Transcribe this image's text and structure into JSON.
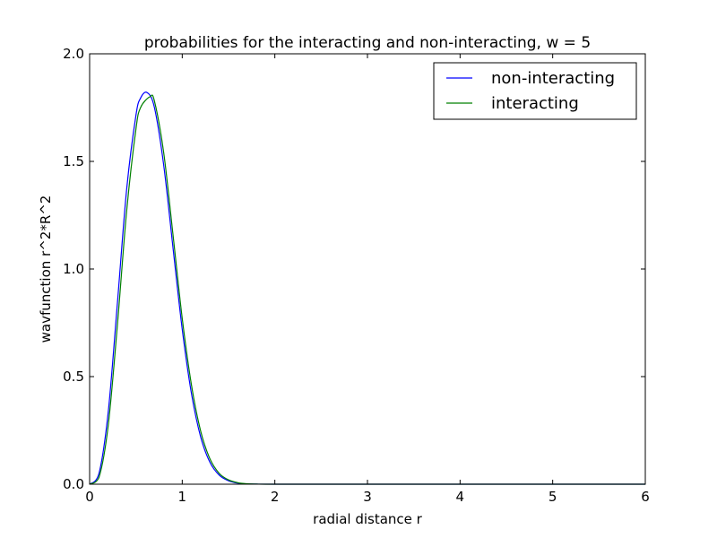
{
  "chart_data": {
    "type": "line",
    "title": "probabilities for the interacting and non-interacting, w = 5",
    "xlabel": "radial distance r",
    "ylabel": "wavfunction r^2*R^2",
    "xlim": [
      0,
      6
    ],
    "ylim": [
      0,
      2.0
    ],
    "xticks": [
      0,
      1,
      2,
      3,
      4,
      5,
      6
    ],
    "xtick_labels": [
      "0",
      "1",
      "2",
      "3",
      "4",
      "5",
      "6"
    ],
    "yticks": [
      0,
      0.5,
      1.0,
      1.5,
      2.0
    ],
    "ytick_labels": [
      "0.0",
      "0.5",
      "1.0",
      "1.5",
      "2.0"
    ],
    "grid": false,
    "legend_position": "top-right",
    "series": [
      {
        "name": "non-interacting",
        "color": "#0000ff",
        "x": [
          0,
          0.1,
          0.2,
          0.3,
          0.4,
          0.5,
          0.55,
          0.62,
          0.7,
          0.8,
          0.9,
          1.0,
          1.1,
          1.2,
          1.3,
          1.4,
          1.5,
          1.6,
          1.7,
          1.8,
          2.0,
          3.0,
          4.0,
          5.0,
          6.0
        ],
        "y": [
          0,
          0.048,
          0.332,
          0.842,
          1.371,
          1.714,
          1.794,
          1.82,
          1.75,
          1.482,
          1.1,
          0.72,
          0.42,
          0.218,
          0.101,
          0.042,
          0.016,
          0.005,
          0.0015,
          0.0004,
          0.0,
          0.0,
          0.0,
          0.0,
          0.0
        ]
      },
      {
        "name": "interacting",
        "color": "#008000",
        "x": [
          0,
          0.1,
          0.2,
          0.3,
          0.4,
          0.5,
          0.55,
          0.65,
          0.7,
          0.8,
          0.9,
          1.0,
          1.1,
          1.2,
          1.3,
          1.4,
          1.5,
          1.6,
          1.7,
          1.8,
          2.0,
          3.0,
          4.0,
          5.0,
          6.0
        ],
        "y": [
          0,
          0.03,
          0.27,
          0.74,
          1.27,
          1.65,
          1.75,
          1.8,
          1.78,
          1.54,
          1.16,
          0.77,
          0.46,
          0.245,
          0.117,
          0.05,
          0.02,
          0.007,
          0.002,
          0.0006,
          0.0,
          0.0,
          0.0,
          0.0,
          0.0
        ]
      }
    ]
  }
}
